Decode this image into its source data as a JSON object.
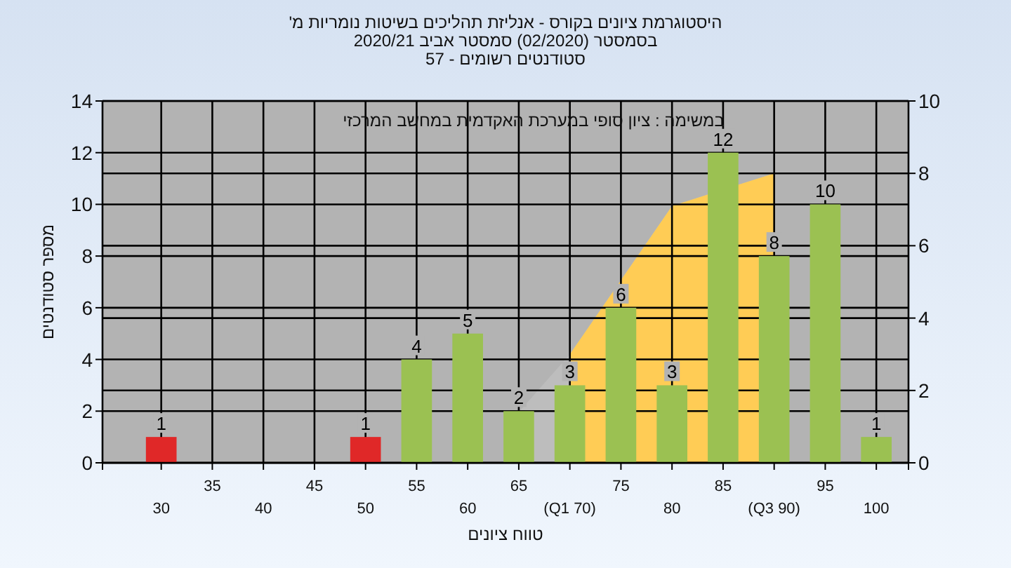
{
  "chart_data": {
    "type": "bar",
    "title": "היסטוגרמת ציונים בקורס - אנליזת תהליכים בשיטות נומריות מ'",
    "subtitle": "בסמסטר (02/2020) סמסטר אביב 2020/21\nסטודנטים רשומים - 57",
    "xlabel": "טווח ציונים",
    "ylabel": "מספר סטודנטים",
    "annotations": [
      "במשימה : ציון סופי במערכת האקדמית במחשב המרכזי"
    ],
    "categories": [
      "30",
      "35",
      "40",
      "45",
      "50",
      "55",
      "60",
      "65",
      "(Q1 70)",
      "75",
      "80",
      "85",
      "(Q3 90)",
      "95",
      "100"
    ],
    "series": [
      {
        "type": "area",
        "axis": "y2",
        "color": "#bdbdbd",
        "values": [
          null,
          null,
          null,
          null,
          null,
          null,
          null,
          1.4,
          3,
          null,
          7.1,
          null,
          8,
          null,
          null
        ]
      },
      {
        "type": "area",
        "axis": "y2",
        "color": "#ffcc55",
        "values": [
          null,
          null,
          null,
          null,
          null,
          null,
          null,
          null,
          3,
          null,
          7.1,
          null,
          8,
          null,
          null
        ]
      },
      {
        "type": "bar",
        "colors": [
          "#e02828",
          "#9bc152",
          "#9bc152",
          "#9bc152",
          "#e02828",
          "#9bc152",
          "#9bc152",
          "#9bc152",
          "#9bc152",
          "#9bc152",
          "#9bc152",
          "#9bc152",
          "#9bc152",
          "#9bc152",
          "#9bc152"
        ],
        "values": [
          1,
          0,
          0,
          0,
          1,
          4,
          5,
          2,
          3,
          6,
          3,
          12,
          8,
          10,
          1
        ],
        "value_labels": [
          "1",
          null,
          null,
          null,
          "1",
          "4",
          "5",
          "2",
          "3",
          "6",
          "3",
          "12",
          "8",
          "10",
          "1"
        ]
      }
    ],
    "ylim": [
      0,
      14
    ],
    "yticks": [
      0,
      2,
      4,
      6,
      8,
      10,
      12,
      14
    ],
    "y2lim": [
      0,
      10
    ],
    "y2ticks": [
      0,
      2,
      4,
      6,
      8,
      10
    ],
    "grid": true
  }
}
